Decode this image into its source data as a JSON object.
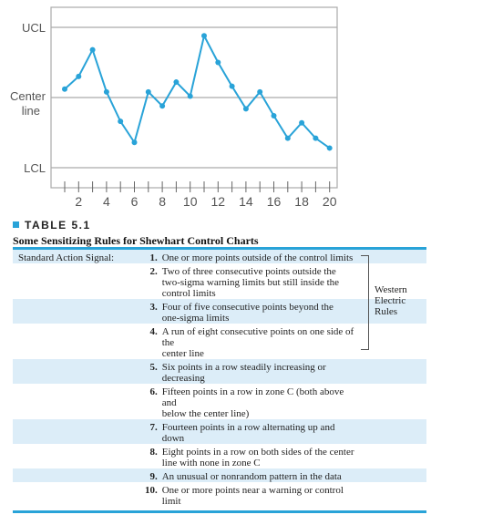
{
  "chart_data": {
    "type": "line",
    "x": [
      1,
      2,
      3,
      4,
      5,
      6,
      7,
      8,
      9,
      10,
      11,
      12,
      13,
      14,
      15,
      16,
      17,
      18,
      19,
      20
    ],
    "values": [
      0.3,
      0.75,
      1.7,
      0.2,
      -0.85,
      -1.6,
      0.2,
      -0.3,
      0.55,
      0.05,
      2.2,
      1.25,
      0.4,
      -0.4,
      0.2,
      -0.65,
      -1.45,
      -0.9,
      -1.45,
      -1.8
    ],
    "xticks": [
      "2",
      "4",
      "6",
      "8",
      "10",
      "12",
      "14",
      "16",
      "18",
      "20"
    ],
    "ylim": [
      -2.5,
      2.5
    ],
    "ref_lines": [
      {
        "label": "UCL",
        "value": 2.5
      },
      {
        "label": "Center line",
        "value": 0
      },
      {
        "label": "LCL",
        "value": -2.5
      }
    ],
    "colors": {
      "line": "#29a3d8",
      "ref": "#aaaaaa"
    }
  },
  "axis": {
    "ucl": "UCL",
    "center1": "Center",
    "center2": "line",
    "lcl": "LCL"
  },
  "table": {
    "label": "TABLE 5.1",
    "title": "Some Sensitizing Rules for Shewhart Control Charts",
    "signal_label": "Standard Action Signal:",
    "western_label": [
      "Western",
      "Electric",
      "Rules"
    ],
    "rules": [
      {
        "num": "1.",
        "lines": [
          "One or more points outside of the control limits"
        ]
      },
      {
        "num": "2.",
        "lines": [
          "Two of three consecutive points outside the",
          "two-sigma warning limits but still inside the",
          "control limits"
        ]
      },
      {
        "num": "3.",
        "lines": [
          "Four of five consecutive points beyond the",
          "one-sigma limits"
        ]
      },
      {
        "num": "4.",
        "lines": [
          "A run of eight consecutive points on one side of the",
          "center line"
        ]
      },
      {
        "num": "5.",
        "lines": [
          "Six points in a row steadily increasing or decreasing"
        ]
      },
      {
        "num": "6.",
        "lines": [
          "Fifteen points in a row in zone C (both above and",
          "below the center line)"
        ]
      },
      {
        "num": "7.",
        "lines": [
          "Fourteen points in a row alternating up and down"
        ]
      },
      {
        "num": "8.",
        "lines": [
          "Eight points in a row on both sides of the center",
          "line with none in zone C"
        ]
      },
      {
        "num": "9.",
        "lines": [
          "An unusual or nonrandom pattern in the data"
        ]
      },
      {
        "num": "10.",
        "lines": [
          "One or more points near a warning or control limit"
        ]
      }
    ]
  }
}
